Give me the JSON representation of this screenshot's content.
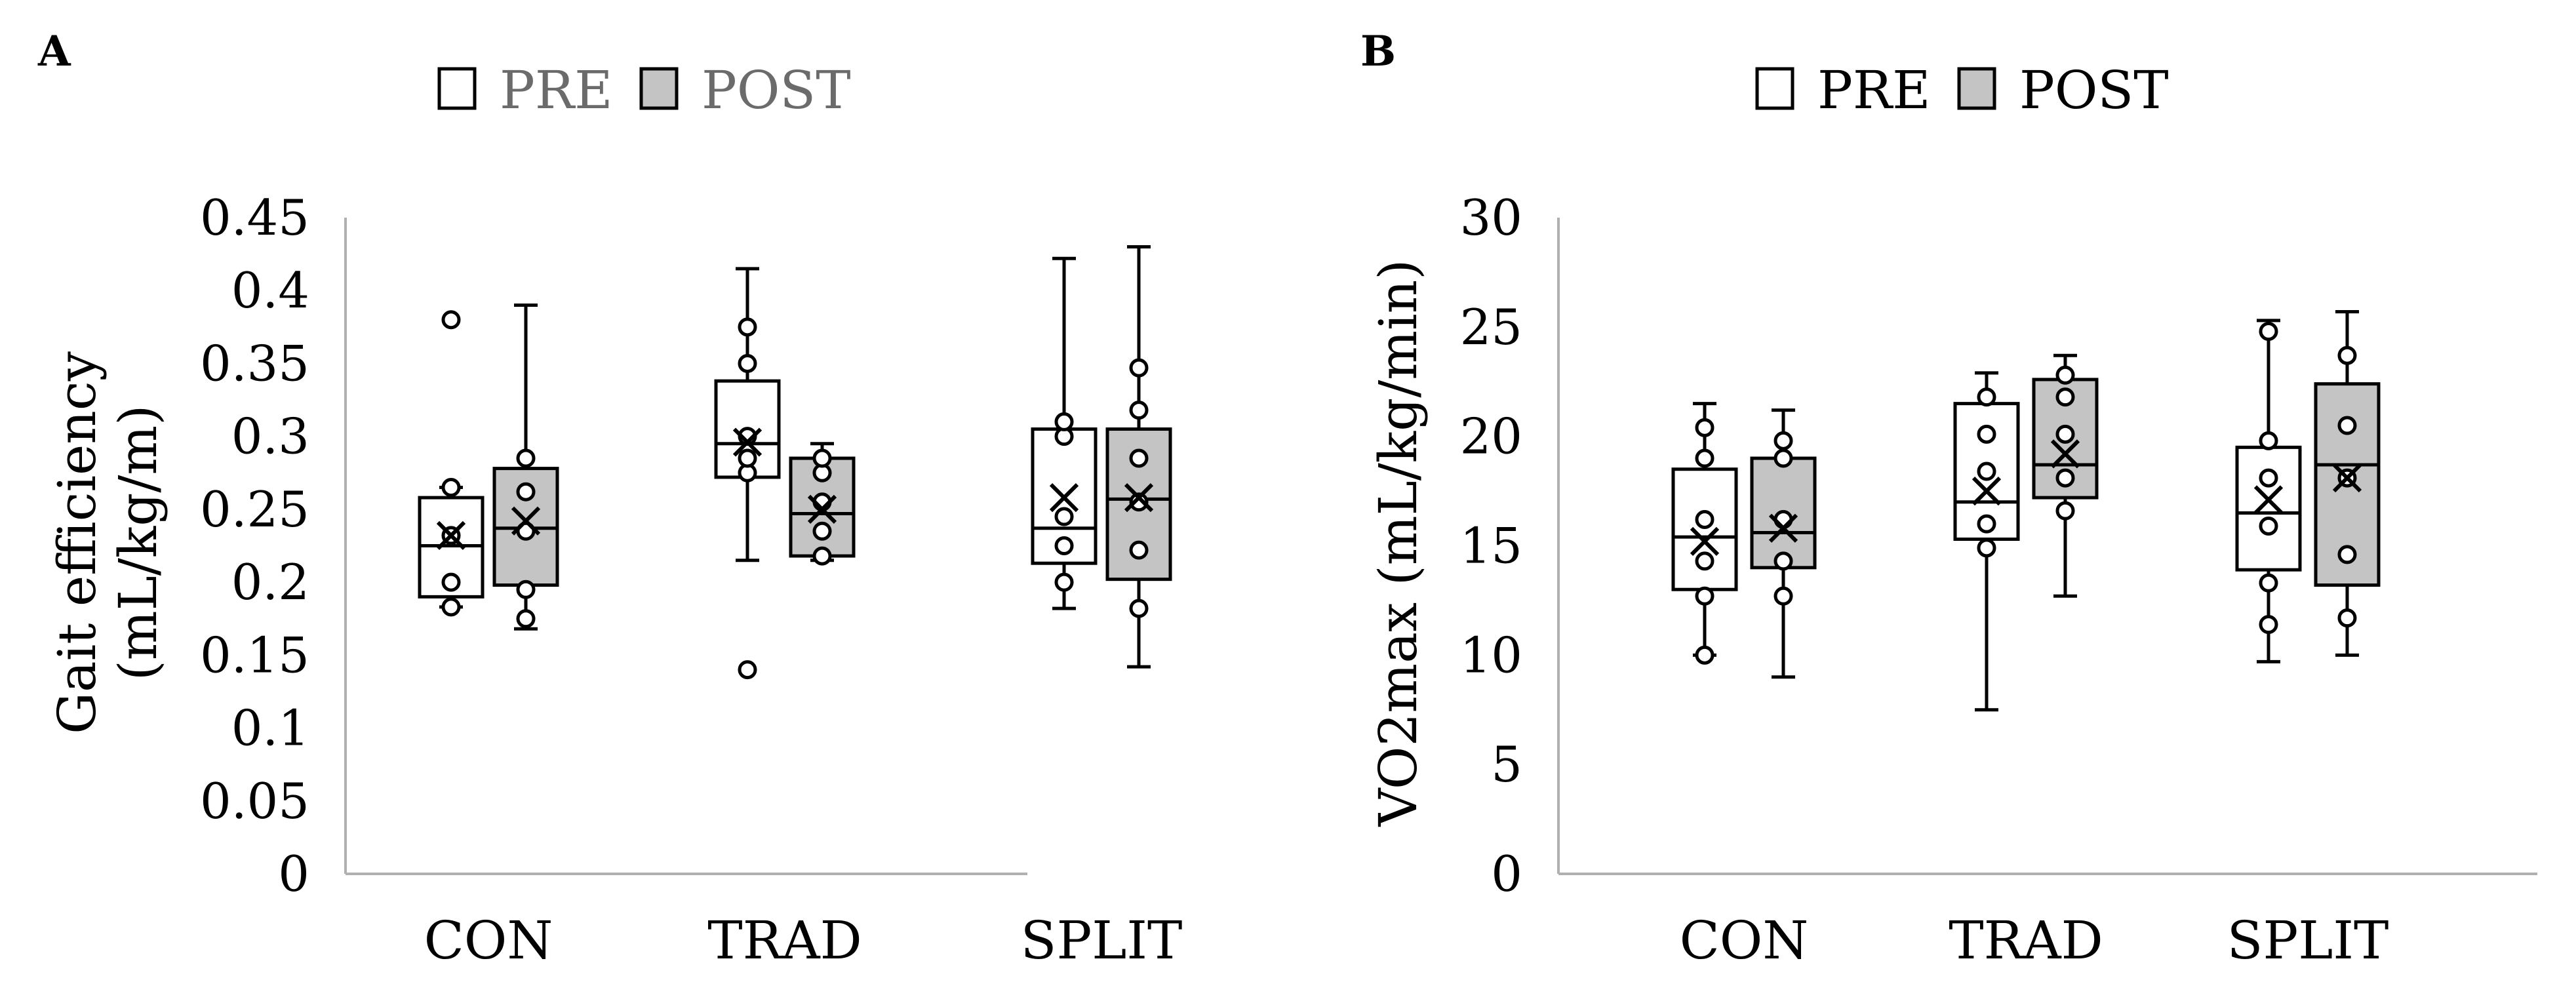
{
  "colors": {
    "pre": "#ffffff",
    "post": "#c4c4c4",
    "stroke": "#000000",
    "axis": "#b0b0b0",
    "legend_a_text": "#6b6b6b",
    "legend_b_text": "#000000"
  },
  "chart_data": [
    {
      "type": "box",
      "panel": "A",
      "ylabel_lines": [
        "Gait efficiency",
        "(mL/kg/m)"
      ],
      "ylim": [
        0,
        0.45
      ],
      "yticks": [
        0,
        0.05,
        0.1,
        0.15,
        0.2,
        0.25,
        0.3,
        0.35,
        0.4,
        0.45
      ],
      "ytick_labels": [
        "0",
        "0.05",
        "0.1",
        "0.15",
        "0.2",
        "0.25",
        "0.3",
        "0.35",
        "0.4",
        "0.45"
      ],
      "categories": [
        "CON",
        "TRAD",
        "SPLIT"
      ],
      "legend": [
        "PRE",
        "POST"
      ],
      "series": [
        {
          "name": "PRE",
          "boxes": [
            {
              "min": 0.183,
              "q1": 0.19,
              "median": 0.225,
              "q3": 0.258,
              "max": 0.265,
              "mean": 0.232,
              "points": [
                0.183,
                0.2,
                0.232,
                0.265,
                0.38
              ]
            },
            {
              "min": 0.215,
              "q1": 0.272,
              "median": 0.295,
              "q3": 0.338,
              "max": 0.415,
              "mean": 0.296,
              "points": [
                0.14,
                0.275,
                0.285,
                0.3,
                0.35,
                0.375
              ]
            },
            {
              "min": 0.182,
              "q1": 0.213,
              "median": 0.237,
              "q3": 0.305,
              "max": 0.422,
              "mean": 0.258,
              "points": [
                0.2,
                0.225,
                0.245,
                0.3,
                0.31
              ]
            }
          ]
        },
        {
          "name": "POST",
          "boxes": [
            {
              "min": 0.168,
              "q1": 0.198,
              "median": 0.237,
              "q3": 0.278,
              "max": 0.39,
              "mean": 0.242,
              "points": [
                0.175,
                0.195,
                0.235,
                0.262,
                0.285
              ]
            },
            {
              "min": 0.215,
              "q1": 0.218,
              "median": 0.247,
              "q3": 0.285,
              "max": 0.295,
              "mean": 0.25,
              "points": [
                0.218,
                0.235,
                0.255,
                0.275,
                0.285
              ]
            },
            {
              "min": 0.142,
              "q1": 0.202,
              "median": 0.257,
              "q3": 0.305,
              "max": 0.43,
              "mean": 0.258,
              "points": [
                0.182,
                0.222,
                0.255,
                0.285,
                0.318,
                0.347
              ]
            }
          ]
        }
      ]
    },
    {
      "type": "box",
      "panel": "B",
      "ylabel_lines": [
        "VO2max (mL/kg/min)"
      ],
      "ylim": [
        0,
        30
      ],
      "yticks": [
        0,
        5,
        10,
        15,
        20,
        25,
        30
      ],
      "ytick_labels": [
        "0",
        "5",
        "10",
        "15",
        "20",
        "25",
        "30"
      ],
      "categories": [
        "CON",
        "TRAD",
        "SPLIT"
      ],
      "legend": [
        "PRE",
        "POST"
      ],
      "series": [
        {
          "name": "PRE",
          "boxes": [
            {
              "min": 10.0,
              "q1": 13.0,
              "median": 15.4,
              "q3": 18.5,
              "max": 21.5,
              "mean": 15.2,
              "points": [
                10.0,
                12.7,
                14.3,
                16.2,
                19.0,
                20.4
              ]
            },
            {
              "min": 7.5,
              "q1": 15.3,
              "median": 17.0,
              "q3": 21.5,
              "max": 22.9,
              "mean": 17.5,
              "points": [
                14.9,
                16.0,
                18.4,
                20.1,
                21.8
              ]
            },
            {
              "min": 9.7,
              "q1": 13.9,
              "median": 16.5,
              "q3": 19.5,
              "max": 25.3,
              "mean": 17.1,
              "points": [
                11.4,
                13.3,
                15.9,
                18.1,
                19.8,
                24.8
              ]
            }
          ]
        },
        {
          "name": "POST",
          "boxes": [
            {
              "min": 9.0,
              "q1": 14.0,
              "median": 15.6,
              "q3": 19.0,
              "max": 21.2,
              "mean": 15.8,
              "points": [
                12.7,
                14.3,
                16.2,
                19.0,
                19.8
              ]
            },
            {
              "min": 12.7,
              "q1": 17.2,
              "median": 18.7,
              "q3": 22.6,
              "max": 23.7,
              "mean": 19.2,
              "points": [
                16.6,
                18.1,
                20.1,
                21.8,
                22.8
              ]
            },
            {
              "min": 10.0,
              "q1": 13.2,
              "median": 18.7,
              "q3": 22.4,
              "max": 25.7,
              "mean": 18.1,
              "points": [
                11.7,
                14.6,
                18.1,
                20.5,
                23.7
              ]
            }
          ]
        }
      ]
    }
  ]
}
